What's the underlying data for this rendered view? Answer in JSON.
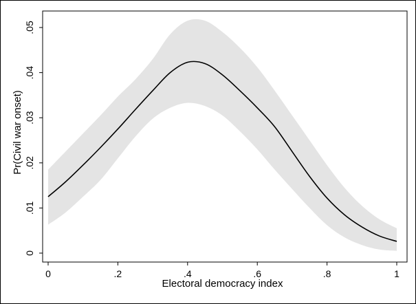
{
  "chart_data": {
    "type": "line",
    "title": "",
    "xlabel": "Electoral democracy index",
    "ylabel": "Pr(Civil war onset)",
    "xlim": [
      0,
      1
    ],
    "ylim": [
      0,
      0.05
    ],
    "xticks": [
      {
        "value": 0,
        "label": "0"
      },
      {
        "value": 0.2,
        "label": ".2"
      },
      {
        "value": 0.4,
        "label": ".4"
      },
      {
        "value": 0.6,
        "label": ".6"
      },
      {
        "value": 0.8,
        "label": ".8"
      },
      {
        "value": 1,
        "label": "1"
      }
    ],
    "yticks": [
      {
        "value": 0,
        "label": "0"
      },
      {
        "value": 0.01,
        "label": ".01"
      },
      {
        "value": 0.02,
        "label": ".02"
      },
      {
        "value": 0.03,
        "label": ".03"
      },
      {
        "value": 0.04,
        "label": ".04"
      },
      {
        "value": 0.05,
        "label": ".05"
      }
    ],
    "grid": false,
    "legend": "none",
    "line_color": "#000000",
    "band_color": "#e4e4e4",
    "series": [
      {
        "x": [
          0,
          0.05,
          0.1,
          0.15,
          0.2,
          0.25,
          0.3,
          0.35,
          0.4,
          0.45,
          0.5,
          0.55,
          0.6,
          0.65,
          0.7,
          0.75,
          0.8,
          0.85,
          0.9,
          0.95,
          1
        ],
        "y": [
          0.0125,
          0.0158,
          0.0195,
          0.0234,
          0.0275,
          0.0318,
          0.036,
          0.04,
          0.0423,
          0.042,
          0.0395,
          0.036,
          0.0322,
          0.028,
          0.0225,
          0.017,
          0.0122,
          0.0085,
          0.0058,
          0.0038,
          0.0026
        ],
        "lower": [
          0.0063,
          0.009,
          0.0125,
          0.0162,
          0.021,
          0.0258,
          0.0298,
          0.0322,
          0.0333,
          0.0326,
          0.0305,
          0.027,
          0.023,
          0.0185,
          0.0142,
          0.01,
          0.0062,
          0.0035,
          0.0018,
          0.0008,
          0.0005
        ],
        "upper": [
          0.0185,
          0.0225,
          0.0265,
          0.0305,
          0.0347,
          0.0385,
          0.043,
          0.0485,
          0.0515,
          0.0515,
          0.049,
          0.0455,
          0.0412,
          0.036,
          0.0305,
          0.025,
          0.0195,
          0.0145,
          0.0105,
          0.0075,
          0.0055
        ]
      }
    ]
  }
}
